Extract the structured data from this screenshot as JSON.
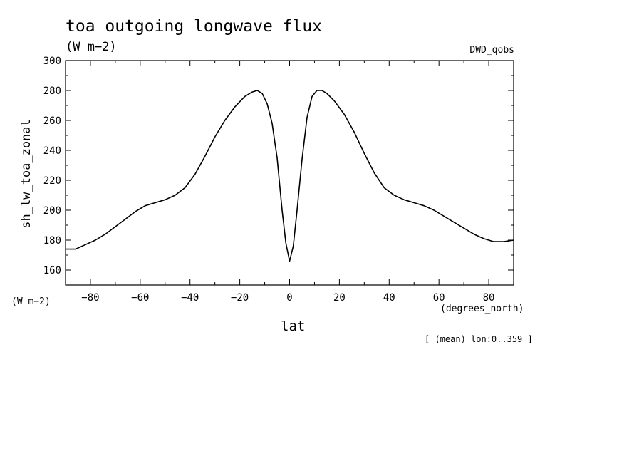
{
  "chart_data": {
    "type": "line",
    "title": "toa outgoing longwave flux",
    "units": "(W m−2)",
    "source_label": "DWD_qobs",
    "ylabel": "sh_lw_toa_zonal",
    "yunits": "(W m−2)",
    "xlabel": "lat",
    "xunits": "(degrees_north)",
    "footnote": "[ (mean) lon:0..359 ]",
    "xlim": [
      -90,
      90
    ],
    "ylim": [
      150,
      300
    ],
    "x_ticks": [
      -80,
      -60,
      -40,
      -20,
      0,
      20,
      40,
      60,
      80
    ],
    "x_tick_labels": [
      "−80",
      "−60",
      "−40",
      "−20",
      "0",
      "20",
      "40",
      "60",
      "80"
    ],
    "y_ticks": [
      160,
      180,
      200,
      220,
      240,
      260,
      280,
      300
    ],
    "y_tick_labels": [
      "160",
      "180",
      "200",
      "220",
      "240",
      "260",
      "280",
      "300"
    ],
    "grid": false,
    "series": [
      {
        "color": "#000000",
        "x": [
          -90,
          -86,
          -82,
          -78,
          -74,
          -70,
          -66,
          -62,
          -58,
          -54,
          -50,
          -46,
          -42,
          -38,
          -34,
          -30,
          -26,
          -22,
          -18,
          -15,
          -13,
          -11,
          -9,
          -7,
          -5,
          -3,
          -1.5,
          0,
          1.5,
          3,
          5,
          7,
          9,
          11,
          13,
          15,
          18,
          22,
          26,
          30,
          34,
          38,
          42,
          46,
          50,
          54,
          58,
          62,
          66,
          70,
          74,
          78,
          82,
          86,
          90
        ],
        "y": [
          174,
          174,
          177,
          180,
          184,
          189,
          194,
          199,
          203,
          205,
          207,
          210,
          215,
          224,
          236,
          249,
          260,
          269,
          276,
          279,
          280,
          278,
          271,
          258,
          235,
          200,
          178,
          166,
          176,
          200,
          234,
          262,
          276,
          280,
          280,
          278,
          273,
          264,
          252,
          238,
          225,
          215,
          210,
          207,
          205,
          203,
          200,
          196,
          192,
          188,
          184,
          181,
          179,
          179,
          180
        ]
      }
    ]
  }
}
